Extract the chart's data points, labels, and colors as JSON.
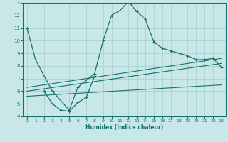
{
  "xlabel": "Humidex (Indice chaleur)",
  "xlim": [
    -0.5,
    23.5
  ],
  "ylim": [
    4,
    13
  ],
  "xticks": [
    0,
    1,
    2,
    3,
    4,
    5,
    6,
    7,
    8,
    9,
    10,
    11,
    12,
    13,
    14,
    15,
    16,
    17,
    18,
    19,
    20,
    21,
    22,
    23
  ],
  "yticks": [
    4,
    5,
    6,
    7,
    8,
    9,
    10,
    11,
    12,
    13
  ],
  "bg_color": "#c8e8e8",
  "line_color": "#1a7070",
  "grid_color": "#a8cccc",
  "lines": [
    {
      "x": [
        0,
        1,
        3,
        5,
        6,
        8,
        9,
        10,
        11,
        12,
        13,
        14,
        15,
        16,
        17,
        18,
        19,
        20,
        21,
        22,
        23
      ],
      "y": [
        11,
        8.5,
        6.0,
        4.5,
        6.3,
        7.4,
        10.0,
        12.0,
        12.4,
        13.1,
        12.3,
        11.7,
        9.9,
        9.4,
        9.2,
        9.0,
        8.8,
        8.5,
        8.5,
        8.6,
        7.9
      ],
      "marker": "+"
    },
    {
      "x": [
        2,
        3,
        4,
        5,
        6,
        7,
        8
      ],
      "y": [
        6.0,
        5.0,
        4.5,
        4.4,
        5.1,
        5.5,
        7.2
      ],
      "marker": "+"
    },
    {
      "x": [
        0,
        23
      ],
      "y": [
        6.3,
        8.6
      ],
      "marker": null
    },
    {
      "x": [
        0,
        23
      ],
      "y": [
        6.0,
        8.2
      ],
      "marker": null
    },
    {
      "x": [
        0,
        23
      ],
      "y": [
        5.6,
        6.5
      ],
      "marker": null
    }
  ]
}
